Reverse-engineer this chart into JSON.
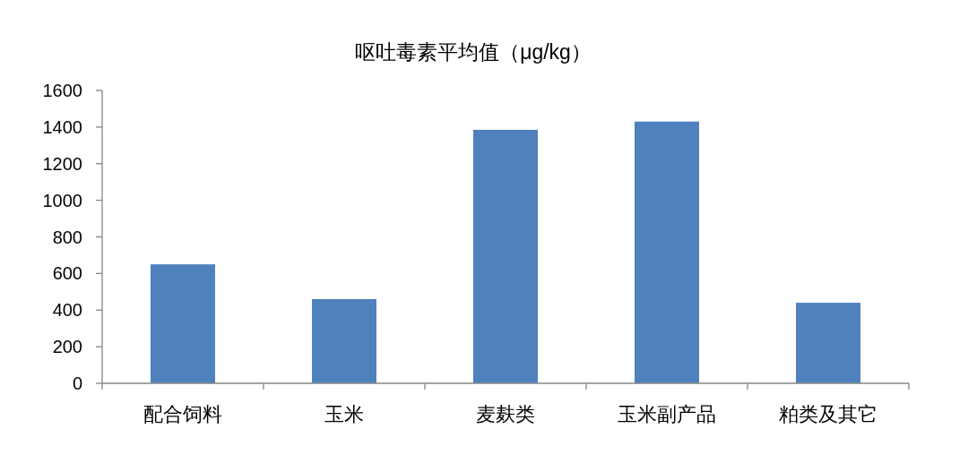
{
  "chart_data": {
    "type": "bar",
    "title": "呕吐毒素平均值（μg/kg）",
    "categories": [
      "配合饲料",
      "玉米",
      "麦麸类",
      "玉米副产品",
      "粕类及其它"
    ],
    "values": [
      650,
      460,
      1385,
      1430,
      440
    ],
    "color": "#4f81bd",
    "ylim": [
      0,
      1600
    ],
    "yticks": [
      0,
      200,
      400,
      600,
      800,
      1000,
      1200,
      1400,
      1600
    ]
  }
}
